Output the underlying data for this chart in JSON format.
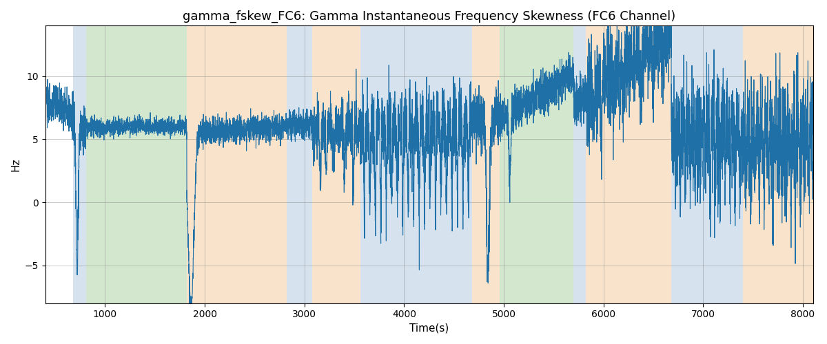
{
  "title": "gamma_fskew_FC6: Gamma Instantaneous Frequency Skewness (FC6 Channel)",
  "xlabel": "Time(s)",
  "ylabel": "Hz",
  "xlim": [
    400,
    8100
  ],
  "ylim": [
    -8,
    14
  ],
  "line_color": "#2070a8",
  "line_width": 0.8,
  "background_color": "#ffffff",
  "grid": true,
  "regions": [
    {
      "start": 680,
      "end": 810,
      "color": "#aec8e0",
      "alpha": 0.5
    },
    {
      "start": 810,
      "end": 1820,
      "color": "#a8d0a0",
      "alpha": 0.5
    },
    {
      "start": 1820,
      "end": 2820,
      "color": "#f5c897",
      "alpha": 0.5
    },
    {
      "start": 2820,
      "end": 3080,
      "color": "#aec8e0",
      "alpha": 0.5
    },
    {
      "start": 3080,
      "end": 3560,
      "color": "#f5c897",
      "alpha": 0.5
    },
    {
      "start": 3560,
      "end": 4680,
      "color": "#aec8e0",
      "alpha": 0.5
    },
    {
      "start": 4680,
      "end": 4960,
      "color": "#f5c897",
      "alpha": 0.5
    },
    {
      "start": 4960,
      "end": 5700,
      "color": "#a8d0a0",
      "alpha": 0.5
    },
    {
      "start": 5700,
      "end": 5820,
      "color": "#aec8e0",
      "alpha": 0.5
    },
    {
      "start": 5820,
      "end": 6680,
      "color": "#f5c897",
      "alpha": 0.5
    },
    {
      "start": 6680,
      "end": 7400,
      "color": "#aec8e0",
      "alpha": 0.5
    },
    {
      "start": 7400,
      "end": 8100,
      "color": "#f5c897",
      "alpha": 0.5
    }
  ],
  "title_fontsize": 13,
  "label_fontsize": 11,
  "tick_fontsize": 10,
  "xticks": [
    1000,
    2000,
    3000,
    4000,
    5000,
    6000,
    7000,
    8000
  ],
  "yticks": [
    -5,
    0,
    5,
    10
  ]
}
